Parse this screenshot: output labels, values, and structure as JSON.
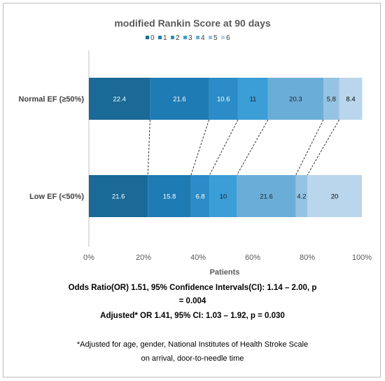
{
  "chart_data": {
    "type": "bar",
    "orientation": "horizontal",
    "stacked": true,
    "percent": true,
    "title": "modified Rankin Score at 90 days",
    "xlabel": "Patients",
    "ylabel": "",
    "xlim": [
      0,
      100
    ],
    "x_ticks": [
      "0%",
      "20%",
      "40%",
      "60%",
      "80%",
      "100%"
    ],
    "categories": [
      "Normal EF (≥50%)",
      "Low EF (<50%)"
    ],
    "legend_position": "top",
    "grid": false,
    "connector_lines": "dashed, between segment boundaries of the two bars",
    "series": [
      {
        "name": "0",
        "values": [
          22.4,
          21.6
        ],
        "color": "#1a6996"
      },
      {
        "name": "1",
        "values": [
          21.6,
          15.8
        ],
        "color": "#1e7bb3"
      },
      {
        "name": "2",
        "values": [
          10.6,
          6.8
        ],
        "color": "#2b8cc7"
      },
      {
        "name": "3",
        "values": [
          11,
          10
        ],
        "color": "#3b9ed6"
      },
      {
        "name": "4",
        "values": [
          20.3,
          21.6
        ],
        "color": "#6aaed8"
      },
      {
        "name": "5",
        "values": [
          5.8,
          4.2
        ],
        "color": "#95c3e2"
      },
      {
        "name": "6",
        "values": [
          8.4,
          20
        ],
        "color": "#bad6ec"
      }
    ],
    "data_labels": [
      [
        "22.4",
        "21.6",
        "10.6",
        "11",
        "20.3",
        "5.8",
        "8.4"
      ],
      [
        "21.6",
        "15.8",
        "6.8",
        "10",
        "21.6",
        "4.2",
        "20"
      ]
    ],
    "label_colors": [
      "#ffffff",
      "#ffffff",
      "#ffffff",
      "#1f1f1f",
      "#1f1f1f",
      "#1f1f1f",
      "#000000"
    ]
  },
  "notes": {
    "odds_ratio_line1": "Odds Ratio(OR) 1.51, 95% Confidence Intervals(CI): 1.14 – 2.00, p",
    "odds_ratio_line2": "= 0.004",
    "adjusted": "Adjusted* OR 1.41, 95% CI: 1.03 – 1.92, p = 0.030",
    "footnote_line1": "*Adjusted for age, gender, National Institutes of Health Stroke Scale",
    "footnote_line2": "on arrival, door-to-needle time"
  }
}
